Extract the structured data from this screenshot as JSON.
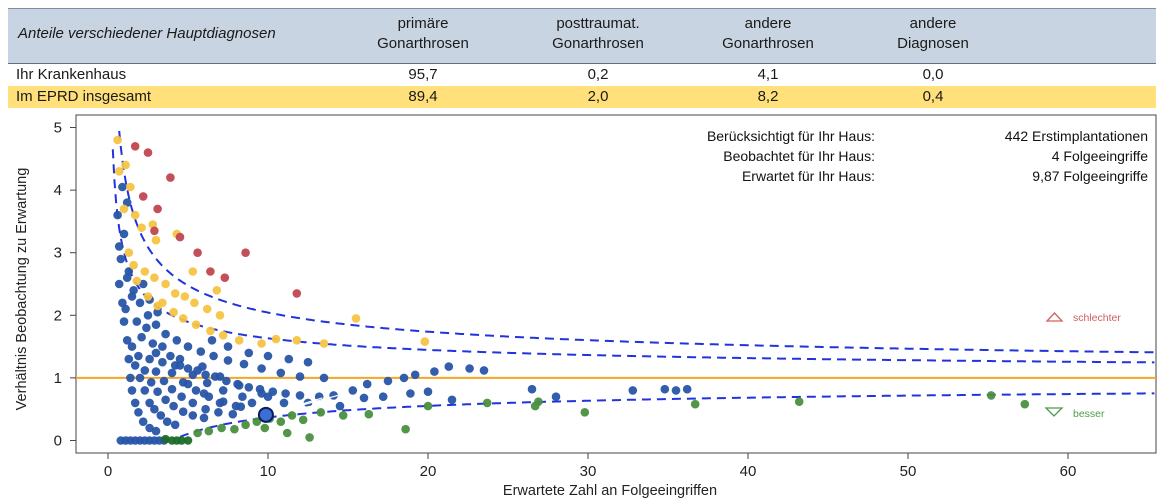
{
  "table": {
    "header": {
      "title": "Anteile verschiedener Hauptdiagnosen",
      "columns": [
        [
          "primäre",
          "Gonarthrosen"
        ],
        [
          "posttraumat.",
          "Gonarthrosen"
        ],
        [
          "andere",
          "Gonarthrosen"
        ],
        [
          "andere",
          "Diagnosen"
        ]
      ]
    },
    "rows": [
      {
        "label": "Ihr Krankenhaus",
        "values": [
          "95,7",
          "0,2",
          "4,1",
          "0,0"
        ],
        "highlight": false
      },
      {
        "label": "Im EPRD insgesamt",
        "values": [
          "89,4",
          "2,0",
          "8,2",
          "0,4"
        ],
        "highlight": true
      }
    ]
  },
  "chart_data": {
    "type": "scatter",
    "xlabel": "Erwartete Zahl an Folgeeingriffen",
    "ylabel": "Verhältnis Beobachtung zu Erwartung",
    "xlim": [
      -2,
      65.5
    ],
    "ylim": [
      -0.2,
      5.2
    ],
    "xticks": [
      "0",
      "10",
      "20",
      "30",
      "40",
      "50",
      "60"
    ],
    "xtick_values": [
      0,
      10,
      20,
      30,
      40,
      50,
      60
    ],
    "yticks": [
      "0",
      "1",
      "2",
      "3",
      "4",
      "5"
    ],
    "ytick_values": [
      0,
      1,
      2,
      3,
      4,
      5
    ],
    "reference_line": {
      "y": 1,
      "color": "#f5a623"
    },
    "info": [
      {
        "label": "Berücksichtigt für Ihr Haus:",
        "value": "442 Erstimplantationen"
      },
      {
        "label": "Beobachtet für Ihr Haus:",
        "value": "4 Folgeeingriffe"
      },
      {
        "label": "Erwartet für Ihr Haus:",
        "value": "9,87 Folgeeingriffe"
      }
    ],
    "legend": [
      {
        "label": "schlechter",
        "color": "#d06060",
        "symbol": "triangle-up"
      },
      {
        "label": "besser",
        "color": "#4e9a4e",
        "symbol": "triangle-down"
      }
    ],
    "colors": {
      "blue": "#2855a8",
      "yellow": "#f5c343",
      "red": "#c0474f",
      "green": "#4a8f3f",
      "dark_green": "#1e6b2a",
      "curve": "#2233dd"
    },
    "highlight_point": {
      "x": 9.87,
      "y": 0.41
    },
    "series": [
      {
        "color": "blue",
        "points": [
          [
            0.8,
            0
          ],
          [
            1.1,
            0
          ],
          [
            1.4,
            0
          ],
          [
            1.7,
            0
          ],
          [
            2,
            0
          ],
          [
            2.3,
            0
          ],
          [
            2.6,
            0
          ],
          [
            2.9,
            0
          ],
          [
            3.2,
            0
          ],
          [
            3.5,
            0
          ],
          [
            0.9,
            4.05
          ],
          [
            1.2,
            3.8
          ],
          [
            1,
            3.3
          ],
          [
            0.8,
            2.9
          ],
          [
            1.2,
            2.6
          ],
          [
            1.5,
            2.3
          ],
          [
            1.1,
            2.1
          ],
          [
            1.8,
            1.9
          ],
          [
            2.4,
            1.8
          ],
          [
            2.1,
            1.65
          ],
          [
            2.8,
            1.55
          ],
          [
            3.4,
            1.5
          ],
          [
            3,
            1.4
          ],
          [
            3.9,
            1.35
          ],
          [
            4.5,
            1.3
          ],
          [
            4.2,
            1.2
          ],
          [
            5,
            1.15
          ],
          [
            5.6,
            1.12
          ],
          [
            6.1,
            1.05
          ],
          [
            6.7,
            1.02
          ],
          [
            7.4,
            0.95
          ],
          [
            8.1,
            0.9
          ],
          [
            8.8,
            0.85
          ],
          [
            9.5,
            0.82
          ],
          [
            10.3,
            0.78
          ],
          [
            11.1,
            0.75
          ],
          [
            12,
            0.72
          ],
          [
            13.2,
            0.7
          ],
          [
            14.1,
            0.72
          ],
          [
            15.3,
            0.8
          ],
          [
            16.2,
            0.9
          ],
          [
            17.5,
            0.95
          ],
          [
            18.5,
            1.0
          ],
          [
            19.2,
            1.05
          ],
          [
            20.4,
            1.1
          ],
          [
            21.3,
            1.18
          ],
          [
            22.6,
            1.15
          ],
          [
            23.5,
            1.12
          ],
          [
            14.5,
            0.55
          ],
          [
            16,
            0.68
          ],
          [
            17.2,
            0.7
          ],
          [
            18.9,
            0.75
          ],
          [
            20,
            0.78
          ],
          [
            21.5,
            0.65
          ],
          [
            26.5,
            0.82
          ],
          [
            28,
            0.7
          ],
          [
            32.8,
            0.8
          ],
          [
            34.8,
            0.82
          ],
          [
            35.5,
            0.8
          ],
          [
            36.2,
            0.82
          ],
          [
            1.5,
            1.5
          ],
          [
            1.7,
            1.2
          ],
          [
            2,
            1
          ],
          [
            2.3,
            0.8
          ],
          [
            2.6,
            0.6
          ],
          [
            2.9,
            0.5
          ],
          [
            3.3,
            0.4
          ],
          [
            3.7,
            0.3
          ],
          [
            4.2,
            0.25
          ],
          [
            1.9,
            1.35
          ],
          [
            2.3,
            1.12
          ],
          [
            2.7,
            0.93
          ],
          [
            3.1,
            0.78
          ],
          [
            3.6,
            0.65
          ],
          [
            4.1,
            0.55
          ],
          [
            4.7,
            0.46
          ],
          [
            5.3,
            0.4
          ],
          [
            6,
            0.36
          ],
          [
            2.6,
            1.3
          ],
          [
            3,
            1.1
          ],
          [
            3.5,
            0.95
          ],
          [
            4,
            0.82
          ],
          [
            4.6,
            0.7
          ],
          [
            5.3,
            0.6
          ],
          [
            6.1,
            0.5
          ],
          [
            6.9,
            0.45
          ],
          [
            7.8,
            0.42
          ],
          [
            3.4,
            1.25
          ],
          [
            4,
            1.08
          ],
          [
            4.7,
            0.93
          ],
          [
            5.5,
            0.8
          ],
          [
            6.3,
            0.7
          ],
          [
            7.2,
            0.62
          ],
          [
            8.3,
            0.54
          ],
          [
            4.5,
            1.2
          ],
          [
            5.3,
            1.05
          ],
          [
            6.2,
            0.92
          ],
          [
            7.2,
            0.8
          ],
          [
            8.4,
            0.7
          ],
          [
            5.9,
            1.18
          ],
          [
            7,
            1.02
          ],
          [
            8.2,
            0.88
          ],
          [
            9.6,
            0.75
          ],
          [
            1.3,
            2.7
          ],
          [
            1.6,
            2.4
          ],
          [
            2,
            2.2
          ],
          [
            2.5,
            2
          ],
          [
            3,
            1.85
          ],
          [
            3.6,
            1.7
          ],
          [
            4.3,
            1.6
          ],
          [
            5,
            1.5
          ],
          [
            5.8,
            1.42
          ],
          [
            6.6,
            1.35
          ],
          [
            7.5,
            1.28
          ],
          [
            8.5,
            1.22
          ],
          [
            9.6,
            1.15
          ],
          [
            10.8,
            1.08
          ],
          [
            12,
            1.02
          ],
          [
            13.5,
            1.0
          ],
          [
            0.7,
            2.5
          ],
          [
            0.9,
            2.2
          ],
          [
            1,
            1.9
          ],
          [
            1.2,
            1.6
          ],
          [
            1.3,
            1.3
          ],
          [
            1.4,
            1.0
          ],
          [
            1.5,
            0.8
          ],
          [
            1.7,
            0.6
          ],
          [
            1.9,
            0.45
          ],
          [
            2.2,
            0.3
          ],
          [
            2.6,
            0.2
          ],
          [
            3,
            0.15
          ],
          [
            2.2,
            2.5
          ],
          [
            2.6,
            2.25
          ],
          [
            3.1,
            2.05
          ],
          [
            0.6,
            3.6
          ],
          [
            0.7,
            3.1
          ],
          [
            5,
            0.9
          ],
          [
            6,
            0.75
          ],
          [
            7,
            0.6
          ],
          [
            8,
            0.55
          ],
          [
            9,
            0.6
          ],
          [
            10,
            0.7
          ],
          [
            11,
            0.6
          ],
          [
            12.5,
            0.6
          ],
          [
            6.5,
            1.6
          ],
          [
            7.5,
            1.5
          ],
          [
            8.8,
            1.4
          ],
          [
            10,
            1.35
          ],
          [
            11.3,
            1.3
          ],
          [
            12.5,
            1.25
          ]
        ]
      },
      {
        "color": "yellow",
        "points": [
          [
            0.6,
            4.8
          ],
          [
            1.1,
            4.4
          ],
          [
            1.4,
            4.05
          ],
          [
            0.7,
            4.3
          ],
          [
            1,
            3.7
          ],
          [
            1.7,
            3.6
          ],
          [
            2.1,
            3.4
          ],
          [
            2.8,
            3.45
          ],
          [
            3,
            3.2
          ],
          [
            4.3,
            3.3
          ],
          [
            1.3,
            3.0
          ],
          [
            1.6,
            2.8
          ],
          [
            2.3,
            2.7
          ],
          [
            2.9,
            2.6
          ],
          [
            3.6,
            2.5
          ],
          [
            4.2,
            2.35
          ],
          [
            4.8,
            2.3
          ],
          [
            5.4,
            2.2
          ],
          [
            6.2,
            2.1
          ],
          [
            7,
            2.0
          ],
          [
            3.4,
            2.2
          ],
          [
            4.1,
            2.05
          ],
          [
            4.7,
            1.95
          ],
          [
            5.5,
            1.85
          ],
          [
            6.4,
            1.75
          ],
          [
            7.2,
            1.68
          ],
          [
            8.2,
            1.6
          ],
          [
            9.6,
            1.55
          ],
          [
            10.5,
            1.62
          ],
          [
            11.8,
            1.6
          ],
          [
            13.5,
            1.55
          ],
          [
            15.5,
            1.95
          ],
          [
            19.8,
            1.58
          ],
          [
            2.5,
            2.3
          ],
          [
            3.1,
            2.15
          ],
          [
            1.8,
            2.55
          ],
          [
            6.8,
            2.4
          ],
          [
            5.3,
            2.7
          ]
        ]
      },
      {
        "color": "red",
        "points": [
          [
            1.7,
            4.7
          ],
          [
            2.5,
            4.6
          ],
          [
            3.9,
            4.2
          ],
          [
            2.2,
            3.9
          ],
          [
            3.1,
            3.7
          ],
          [
            2.9,
            3.35
          ],
          [
            4.5,
            3.25
          ],
          [
            5.6,
            3.0
          ],
          [
            8.6,
            3.0
          ],
          [
            6.4,
            2.7
          ],
          [
            7.3,
            2.6
          ],
          [
            11.8,
            2.35
          ]
        ]
      },
      {
        "color": "green",
        "points": [
          [
            5.6,
            0.12
          ],
          [
            6.3,
            0.15
          ],
          [
            7.1,
            0.2
          ],
          [
            7.9,
            0.18
          ],
          [
            8.6,
            0.25
          ],
          [
            9.3,
            0.3
          ],
          [
            10.1,
            0.35
          ],
          [
            10.8,
            0.3
          ],
          [
            11.5,
            0.4
          ],
          [
            12.2,
            0.33
          ],
          [
            13.3,
            0.45
          ],
          [
            14.7,
            0.4
          ],
          [
            16.3,
            0.42
          ],
          [
            18.6,
            0.18
          ],
          [
            20,
            0.55
          ],
          [
            23.7,
            0.6
          ],
          [
            26.7,
            0.55
          ],
          [
            29.8,
            0.45
          ],
          [
            36.7,
            0.58
          ],
          [
            43.2,
            0.62
          ],
          [
            55.2,
            0.72
          ],
          [
            57.3,
            0.58
          ],
          [
            12.6,
            0.05
          ],
          [
            11.2,
            0.12
          ],
          [
            9.8,
            0.2
          ],
          [
            26.9,
            0.62
          ]
        ]
      },
      {
        "color": "dark_green",
        "points": [
          [
            4,
            0
          ],
          [
            4.3,
            0
          ],
          [
            4.6,
            0
          ],
          [
            5,
            0
          ],
          [
            3.6,
            0.02
          ]
        ]
      }
    ]
  }
}
